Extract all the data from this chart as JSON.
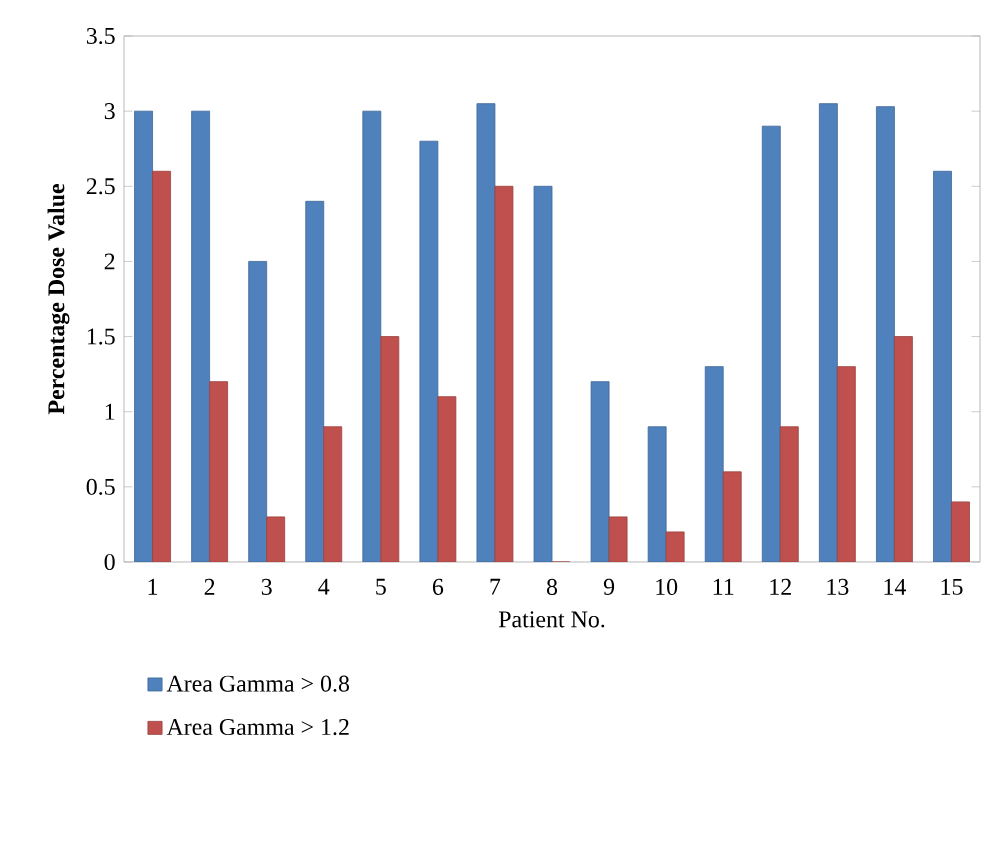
{
  "chart_data": {
    "type": "bar",
    "xlabel": "Patient No.",
    "ylabel": "Percentage Dose Value",
    "categories": [
      "1",
      "2",
      "3",
      "4",
      "5",
      "6",
      "7",
      "8",
      "9",
      "10",
      "11",
      "12",
      "13",
      "14",
      "15"
    ],
    "series": [
      {
        "name": "Area Gamma > 0.8",
        "color": "#4f81bd",
        "values": [
          3.0,
          3.0,
          2.0,
          2.4,
          3.0,
          2.8,
          3.05,
          2.5,
          1.2,
          0.9,
          1.3,
          2.9,
          3.05,
          3.03,
          2.6
        ]
      },
      {
        "name": "Area Gamma > 1.2",
        "color": "#c0504d",
        "values": [
          2.6,
          1.2,
          0.3,
          0.9,
          1.5,
          1.1,
          2.5,
          0.0,
          0.3,
          0.2,
          0.6,
          0.9,
          1.3,
          1.5,
          0.4
        ]
      }
    ],
    "ylim": [
      0,
      3.5
    ],
    "yticks": [
      0,
      0.5,
      1,
      1.5,
      2,
      2.5,
      3,
      3.5
    ],
    "grid": false,
    "legend": "bottom"
  }
}
